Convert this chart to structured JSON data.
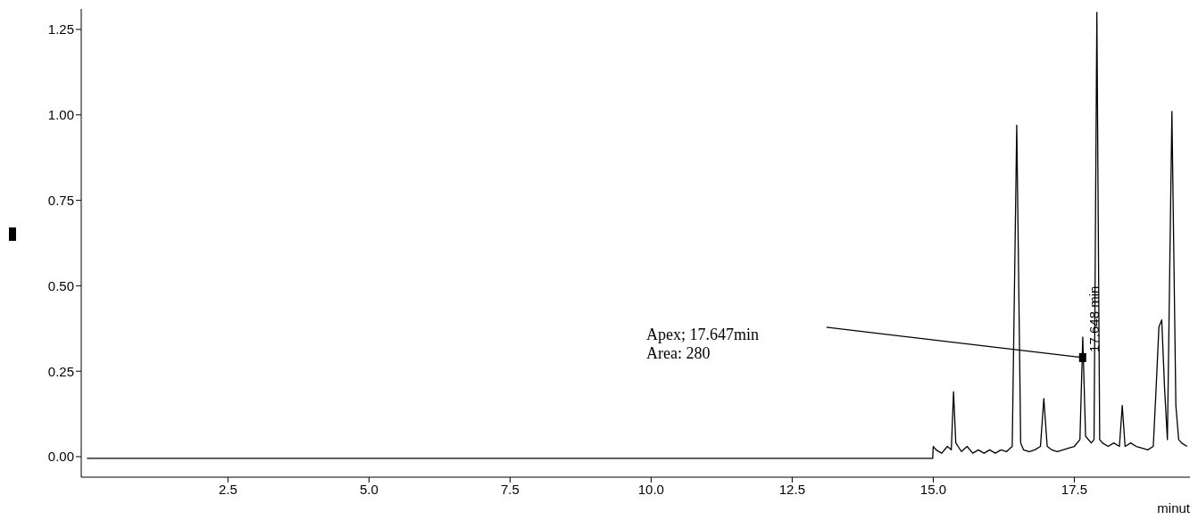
{
  "chart_data": {
    "type": "line",
    "xlabel": "minut",
    "xlim": [
      -0.1,
      19.55
    ],
    "xticks": [
      {
        "value": 2.5,
        "label": "2.5"
      },
      {
        "value": 5,
        "label": "5.0"
      },
      {
        "value": 7.5,
        "label": "7.5"
      },
      {
        "value": 10,
        "label": "10.0"
      },
      {
        "value": 12.5,
        "label": "12.5"
      },
      {
        "value": 15,
        "label": "15.0"
      },
      {
        "value": 17.5,
        "label": "17.5"
      }
    ],
    "ylim": [
      -0.06,
      1.31
    ],
    "yticks": [
      {
        "value": 0,
        "label": "0.00"
      },
      {
        "value": 0.25,
        "label": "0.25"
      },
      {
        "value": 0.5,
        "label": "0.50"
      },
      {
        "value": 0.75,
        "label": "0.75"
      },
      {
        "value": 1,
        "label": "1.00"
      },
      {
        "value": 1.25,
        "label": "1.25"
      }
    ],
    "grid": false,
    "marker": "none",
    "line_style": "solid",
    "series": [
      {
        "color": "#000000",
        "x": [
          0,
          14.99,
          15.0,
          15.05,
          15.15,
          15.25,
          15.32,
          15.36,
          15.4,
          15.5,
          15.6,
          15.7,
          15.8,
          15.9,
          16.0,
          16.1,
          16.2,
          16.3,
          16.4,
          16.48,
          16.55,
          16.6,
          16.7,
          16.8,
          16.9,
          16.96,
          17.02,
          17.1,
          17.2,
          17.3,
          17.4,
          17.5,
          17.6,
          17.65,
          17.7,
          17.8,
          17.85,
          17.9,
          17.95,
          18.0,
          18.1,
          18.2,
          18.3,
          18.35,
          18.4,
          18.5,
          18.6,
          18.7,
          18.8,
          18.9,
          18.95,
          19.0,
          19.05,
          19.1,
          19.15,
          19.23,
          19.3,
          19.35,
          19.4,
          19.5
        ],
        "values": [
          -0.005,
          -0.005,
          0.03,
          0.02,
          0.01,
          0.03,
          0.02,
          0.19,
          0.04,
          0.015,
          0.03,
          0.01,
          0.02,
          0.01,
          0.02,
          0.01,
          0.02,
          0.015,
          0.03,
          0.97,
          0.04,
          0.02,
          0.015,
          0.02,
          0.03,
          0.17,
          0.03,
          0.02,
          0.015,
          0.02,
          0.025,
          0.03,
          0.05,
          0.35,
          0.06,
          0.04,
          0.05,
          1.3,
          0.05,
          0.04,
          0.03,
          0.04,
          0.03,
          0.15,
          0.03,
          0.04,
          0.03,
          0.025,
          0.02,
          0.03,
          0.2,
          0.38,
          0.4,
          0.2,
          0.05,
          1.01,
          0.15,
          0.05,
          0.04,
          0.03
        ]
      }
    ],
    "annotations": [
      "Apex; 17.647min\nArea: 280",
      {
        "text": "17.648 min",
        "x": 17.648,
        "y": 0.29
      }
    ]
  }
}
